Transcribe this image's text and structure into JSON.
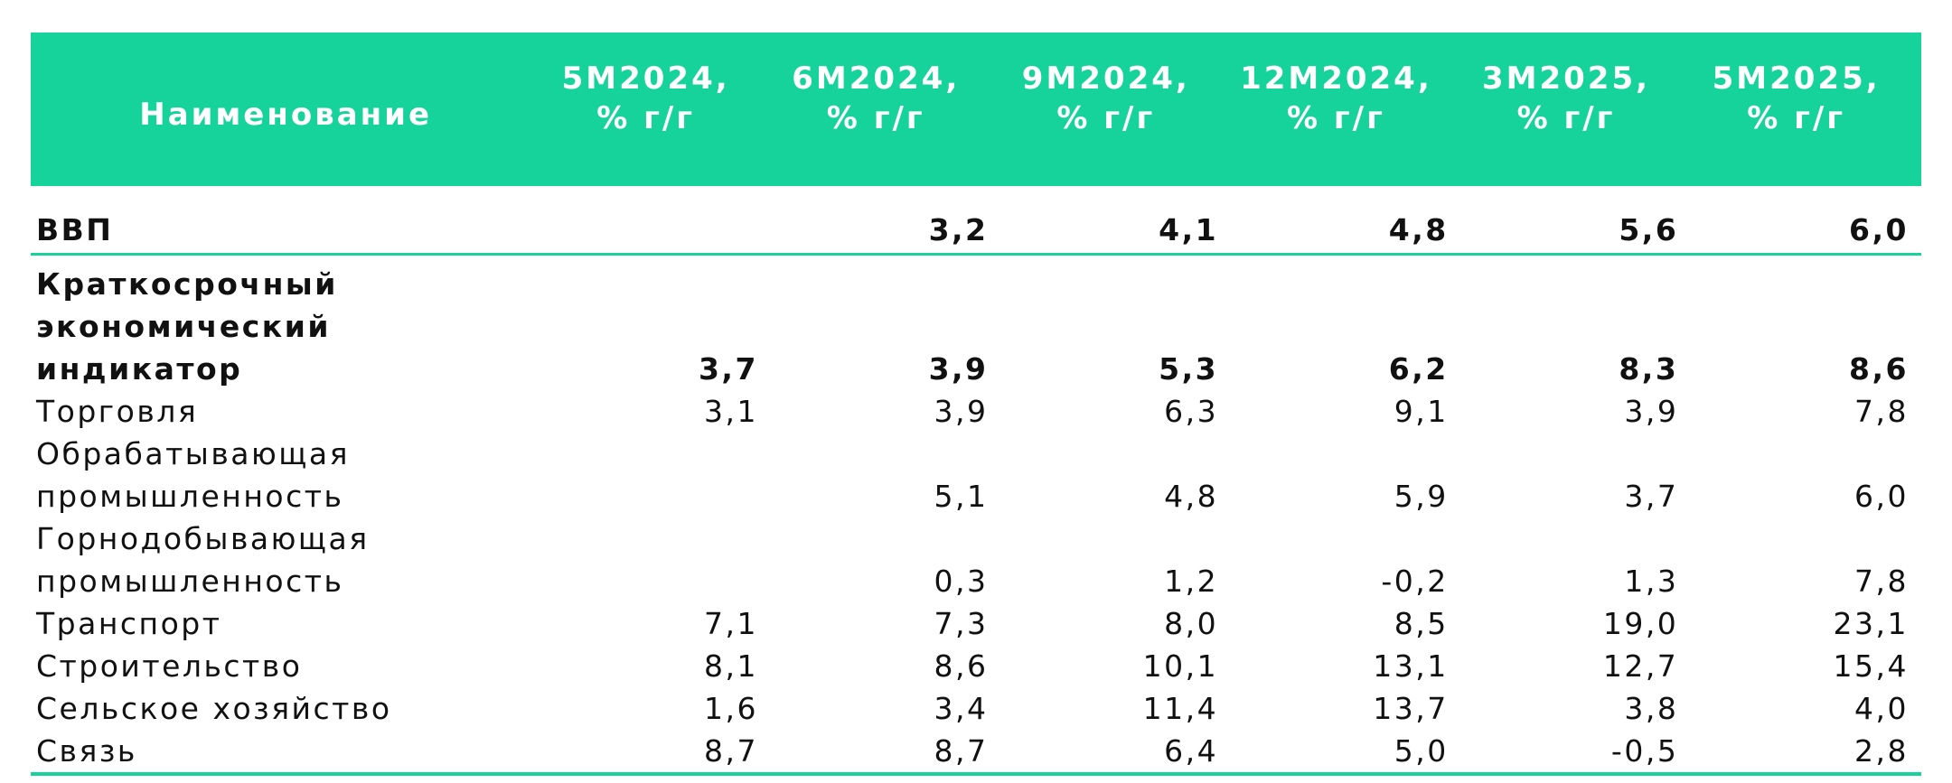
{
  "colors": {
    "accent": "#16d39c",
    "header_text": "#ffffff"
  },
  "table": {
    "header": {
      "name": "Наименование",
      "columns": [
        {
          "line1": "5М2024,",
          "line2": "% г/г"
        },
        {
          "line1": "6М2024,",
          "line2": "% г/г"
        },
        {
          "line1": "9М2024,",
          "line2": "% г/г"
        },
        {
          "line1": "12М2024,",
          "line2": "% г/г"
        },
        {
          "line1": "3М2025,",
          "line2": "% г/г"
        },
        {
          "line1": "5М2025,",
          "line2": "% г/г"
        }
      ]
    },
    "rows": [
      {
        "lines": [
          "ВВП"
        ],
        "values": [
          "",
          "3,2",
          "4,1",
          "4,8",
          "5,6",
          "6,0"
        ],
        "bold": true
      },
      {
        "lines": [
          "Краткосрочный",
          "экономический",
          "индикатор"
        ],
        "values": [
          "3,7",
          "3,9",
          "5,3",
          "6,2",
          "8,3",
          "8,6"
        ],
        "bold": true
      },
      {
        "lines": [
          "Торговля"
        ],
        "values": [
          "3,1",
          "3,9",
          "6,3",
          "9,1",
          "3,9",
          "7,8"
        ],
        "bold": false
      },
      {
        "lines": [
          "Обрабатывающая",
          "промышленность"
        ],
        "values": [
          "",
          "5,1",
          "4,8",
          "5,9",
          "3,7",
          "6,0"
        ],
        "bold": false
      },
      {
        "lines": [
          "Горнодобывающая",
          "промышленность"
        ],
        "values": [
          "",
          "0,3",
          "1,2",
          "-0,2",
          "1,3",
          "7,8"
        ],
        "bold": false
      },
      {
        "lines": [
          "Транспорт"
        ],
        "values": [
          "7,1",
          "7,3",
          "8,0",
          "8,5",
          "19,0",
          "23,1"
        ],
        "bold": false
      },
      {
        "lines": [
          "Строительство"
        ],
        "values": [
          "8,1",
          "8,6",
          "10,1",
          "13,1",
          "12,7",
          "15,4"
        ],
        "bold": false
      },
      {
        "lines": [
          "Сельское хозяйство"
        ],
        "values": [
          "1,6",
          "3,4",
          "11,4",
          "13,7",
          "3,8",
          "4,0"
        ],
        "bold": false
      },
      {
        "lines": [
          "Связь"
        ],
        "values": [
          "8,7",
          "8,7",
          "6,4",
          "5,0",
          "-0,5",
          "2,8"
        ],
        "bold": false
      }
    ]
  }
}
